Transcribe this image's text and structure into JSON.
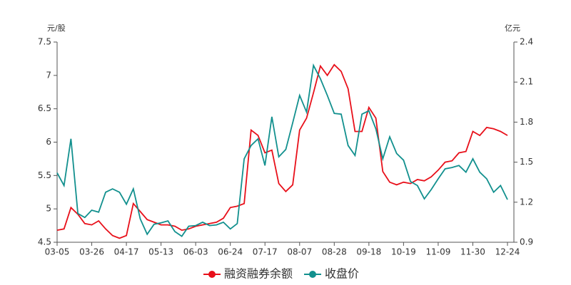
{
  "chart_data": {
    "type": "line",
    "y_label": "元/股",
    "y2_label": "亿元",
    "categories": [
      "03-05",
      null,
      null,
      null,
      null,
      "03-26",
      null,
      null,
      null,
      null,
      "04-17",
      null,
      null,
      null,
      null,
      "05-13",
      null,
      null,
      null,
      null,
      "06-03",
      null,
      null,
      null,
      null,
      "06-24",
      null,
      null,
      null,
      null,
      "07-17",
      null,
      null,
      null,
      null,
      "08-07",
      null,
      null,
      null,
      null,
      "08-28",
      null,
      null,
      null,
      null,
      "09-18",
      null,
      null,
      null,
      null,
      "10-19",
      null,
      null,
      null,
      null,
      "11-09",
      null,
      null,
      null,
      null,
      "11-30",
      null,
      null,
      null,
      null,
      "12-24"
    ],
    "series": [
      {
        "name": "融资融券余额",
        "color": "#e8101a",
        "axis": "y2",
        "values": [
          0.99,
          1.0,
          1.16,
          1.11,
          1.04,
          1.03,
          1.06,
          1.0,
          0.95,
          0.93,
          0.95,
          1.19,
          1.13,
          1.07,
          1.05,
          1.03,
          1.03,
          1.02,
          0.99,
          1.0,
          1.02,
          1.03,
          1.04,
          1.05,
          1.08,
          1.16,
          1.17,
          1.19,
          1.74,
          1.7,
          1.57,
          1.59,
          1.34,
          1.28,
          1.33,
          1.74,
          1.83,
          2.02,
          2.22,
          2.15,
          2.23,
          2.18,
          2.05,
          1.73,
          1.73,
          1.91,
          1.83,
          1.43,
          1.35,
          1.33,
          1.35,
          1.34,
          1.37,
          1.36,
          1.39,
          1.44,
          1.5,
          1.51,
          1.57,
          1.58,
          1.73,
          1.7,
          1.76,
          1.75,
          1.73,
          1.7
        ]
      },
      {
        "name": "收盘价",
        "color": "#12908e",
        "values": [
          5.54,
          5.35,
          6.05,
          4.93,
          4.87,
          4.98,
          4.95,
          5.25,
          5.3,
          5.25,
          5.07,
          5.3,
          4.85,
          4.62,
          4.77,
          4.79,
          4.82,
          4.66,
          4.59,
          4.74,
          4.75,
          4.8,
          4.75,
          4.76,
          4.8,
          4.7,
          4.78,
          5.75,
          5.95,
          6.05,
          5.65,
          6.38,
          5.78,
          5.89,
          6.29,
          6.7,
          6.45,
          7.15,
          6.95,
          6.7,
          6.43,
          6.42,
          5.95,
          5.8,
          6.42,
          6.47,
          6.2,
          5.75,
          6.08,
          5.83,
          5.73,
          5.41,
          5.35,
          5.15,
          5.29,
          5.45,
          5.6,
          5.62,
          5.65,
          5.55,
          5.75,
          5.55,
          5.45,
          5.25,
          5.35,
          5.14
        ]
      }
    ],
    "ylim": [
      4.5,
      7.5
    ],
    "yticks": [
      4.5,
      5,
      5.5,
      6,
      6.5,
      7,
      7.5
    ],
    "y2lim": [
      0.9,
      2.4
    ],
    "y2ticks": [
      0.9,
      1.2,
      1.5,
      1.8,
      2.1,
      2.4
    ],
    "grid": false,
    "legend": "bottom"
  }
}
